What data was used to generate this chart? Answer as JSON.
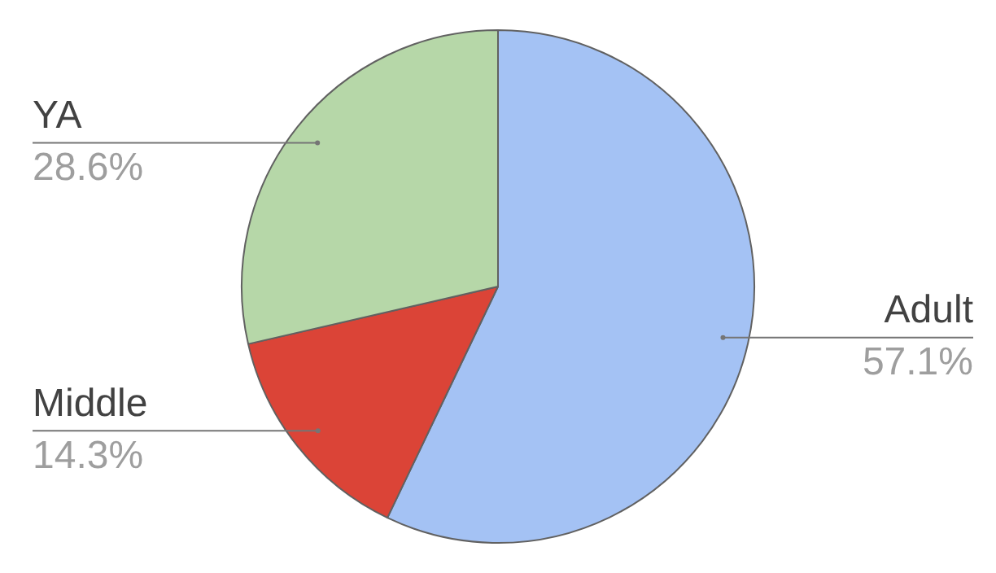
{
  "chart_data": {
    "type": "pie",
    "categories": [
      "Adult",
      "Middle",
      "YA"
    ],
    "values": [
      57.1,
      14.3,
      28.6
    ],
    "colors": [
      "#a4c2f4",
      "#db4437",
      "#b6d7a8"
    ],
    "value_labels": [
      "57.1%",
      "14.3%",
      "28.6%"
    ],
    "legend": false
  }
}
